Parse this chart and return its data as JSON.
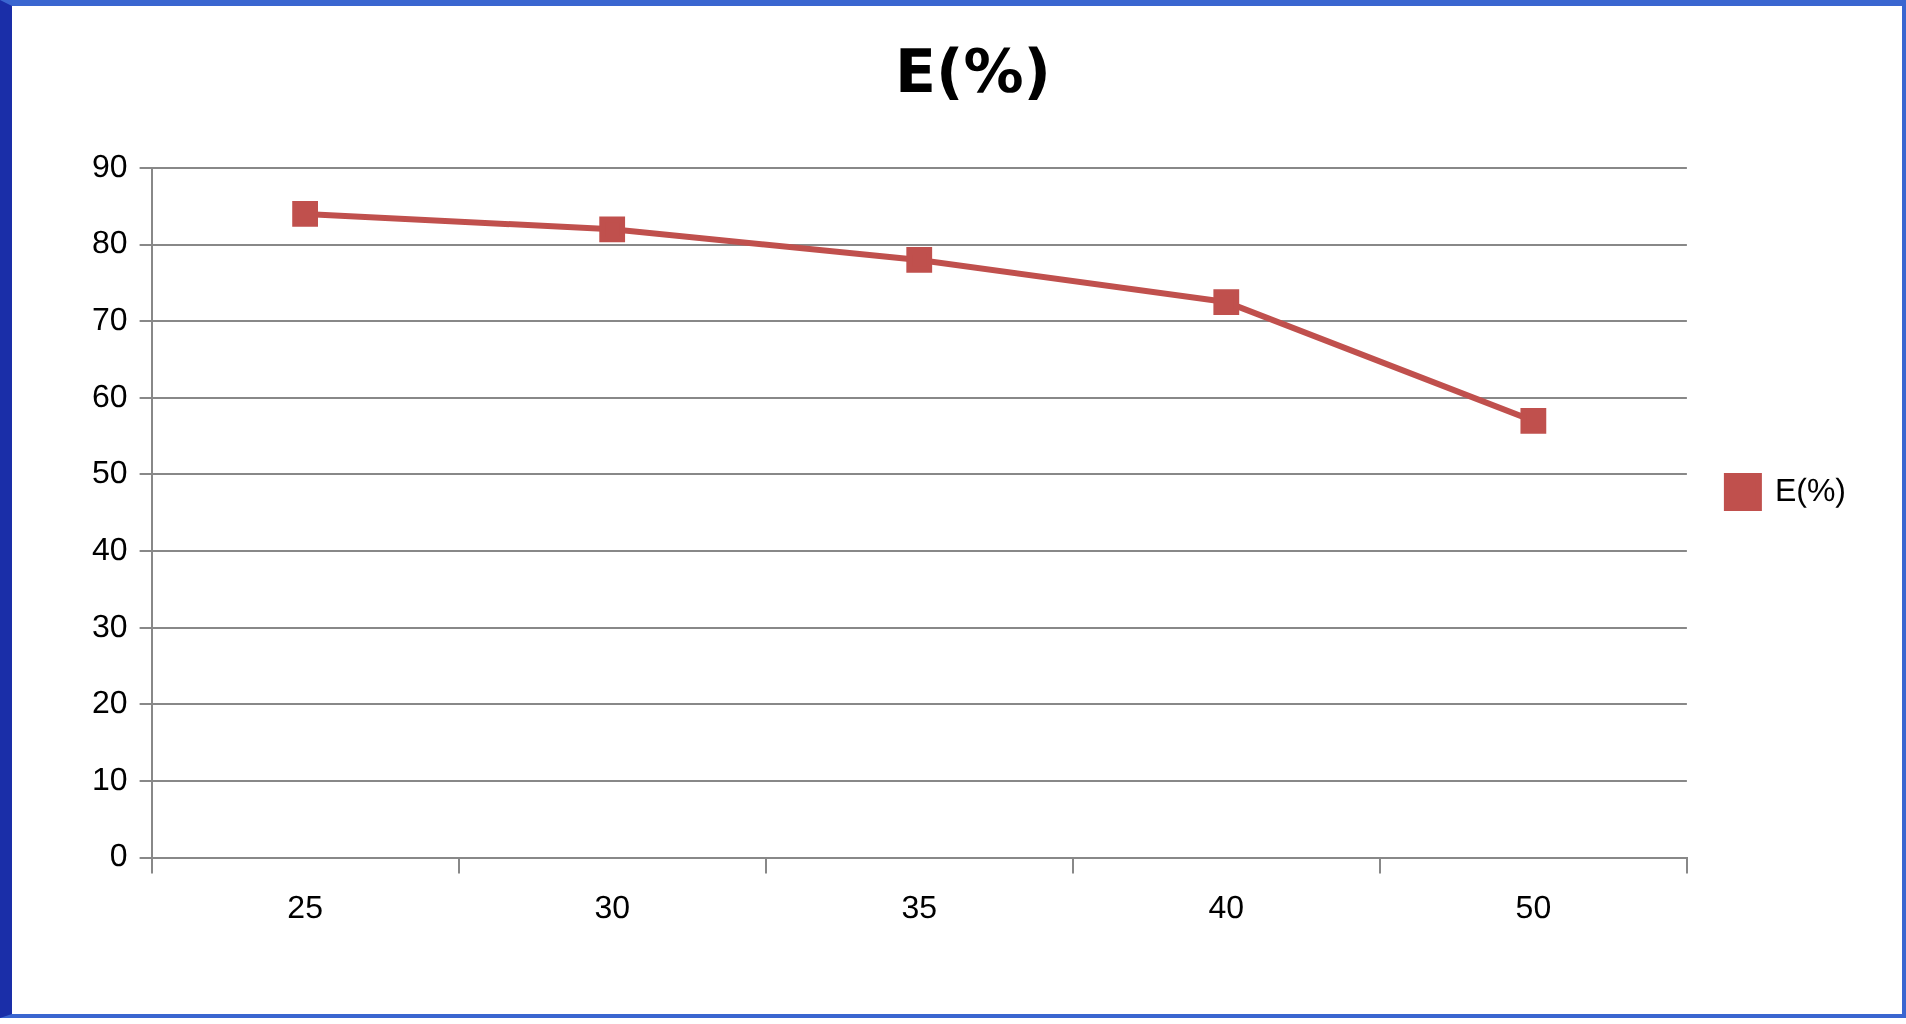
{
  "chart_data": {
    "type": "line",
    "title": "E(%)",
    "categories": [
      "25",
      "30",
      "35",
      "40",
      "50"
    ],
    "series": [
      {
        "name": "E(%)",
        "color": "#c0504d",
        "values": [
          84,
          82,
          78,
          72.5,
          57
        ]
      }
    ],
    "ylim": [
      0,
      90
    ],
    "yticks": [
      0,
      10,
      20,
      30,
      40,
      50,
      60,
      70,
      80,
      90
    ],
    "grid": "y",
    "legend": "right",
    "marker": "square",
    "line_style": "solid"
  }
}
